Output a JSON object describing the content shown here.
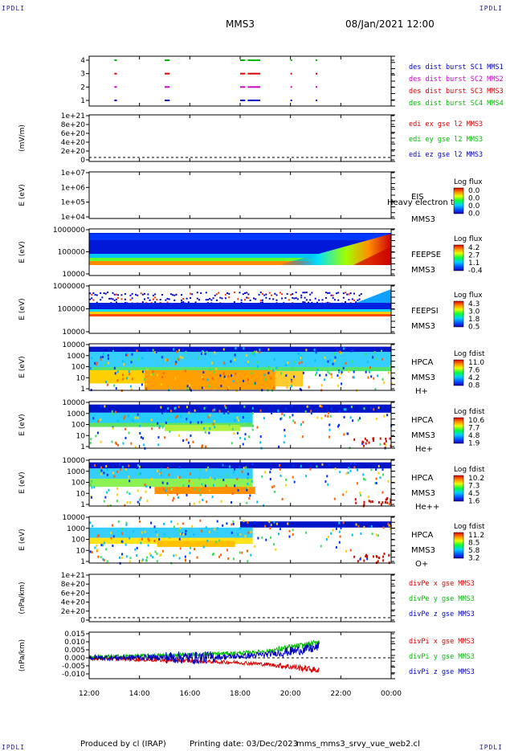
{
  "header": {
    "corner_tl": "IPDLI",
    "corner_tr": "IPDLI",
    "corner_bl": "IPDLI",
    "corner_br": "IPDLI",
    "mission": "MMS3",
    "datetime": "08/Jan/2021 12:00"
  },
  "footer": {
    "producer": "Produced by cl (IRAP)",
    "printing_date": "Printing date: 03/Dec/2023",
    "filename": "mms_mms3_srvy_vue_web2.cl"
  },
  "colors": {
    "blue": "#0000cc",
    "magenta": "#cc00cc",
    "red": "#dd0000",
    "green": "#00bb00"
  },
  "chart_data": [
    {
      "type": "scatter",
      "id": "burst",
      "yticks": [
        "4",
        "3",
        "2",
        "1"
      ],
      "legend": [
        {
          "label": "des dist burst SC1 MMS1",
          "color": "#0000cc"
        },
        {
          "label": "des dist burst SC2 MMS2",
          "color": "#cc00cc"
        },
        {
          "label": "des dist burst SC3 MMS3",
          "color": "#dd0000"
        },
        {
          "label": "des dist burst SC4 MMS4",
          "color": "#00bb00"
        }
      ],
      "intervals": [
        [
          13.0,
          13.1
        ],
        [
          15.0,
          15.2
        ],
        [
          18.0,
          18.2
        ],
        [
          18.3,
          18.8
        ],
        [
          20.0,
          20.05
        ],
        [
          21.0,
          21.05
        ]
      ]
    },
    {
      "type": "line",
      "id": "edi",
      "ylabel": "(mV/m)",
      "yticks": [
        "1e+21",
        "8e+20",
        "6e+20",
        "4e+20",
        "2e+20",
        "0"
      ],
      "legend": [
        {
          "label": "edi ex gse l2 MMS3",
          "color": "#dd0000"
        },
        {
          "label": "edi ey gse l2 MMS3",
          "color": "#00bb00"
        },
        {
          "label": "edi ez gse l2 MMS3",
          "color": "#0000cc"
        }
      ]
    },
    {
      "type": "heatmap",
      "id": "eis",
      "ylabel": "E (eV)",
      "yticks": [
        "1e+07",
        "1e+06",
        "1e+05",
        "1e+04"
      ],
      "side": [
        "EIS",
        "Heavy electron to",
        "MMS3"
      ],
      "cbar_title": "Log flux",
      "cbar_ticks": [
        "0.0",
        "0.0",
        "0.0",
        "0.0"
      ]
    },
    {
      "type": "heatmap",
      "id": "feepse",
      "ylabel": "E (eV)",
      "yticks": [
        "1000000",
        "100000",
        "10000"
      ],
      "side": [
        "FEEPSE",
        "MMS3"
      ],
      "cbar_title": "Log flux",
      "cbar_ticks": [
        "4.2",
        "2.7",
        "1.1",
        "-0.4"
      ]
    },
    {
      "type": "heatmap",
      "id": "feepsi",
      "ylabel": "E (eV)",
      "yticks": [
        "1000000",
        "100000",
        "10000"
      ],
      "side": [
        "FEEPSI",
        "MMS3"
      ],
      "cbar_title": "Log flux",
      "cbar_ticks": [
        "4.3",
        "3.0",
        "1.8",
        "0.5"
      ]
    },
    {
      "type": "heatmap",
      "id": "hpca_h",
      "ylabel": "E (eV)",
      "yticks": [
        "10000",
        "1000",
        "100",
        "10",
        "1"
      ],
      "side": [
        "HPCA",
        "MMS3",
        "H+"
      ],
      "cbar_title": "Log fdist",
      "cbar_ticks": [
        "11.0",
        "7.6",
        "4.2",
        "0.8"
      ]
    },
    {
      "type": "heatmap",
      "id": "hpca_he",
      "ylabel": "E (eV)",
      "yticks": [
        "10000",
        "1000",
        "100",
        "10",
        "1"
      ],
      "side": [
        "HPCA",
        "MMS3",
        "He+"
      ],
      "cbar_title": "Log fdist",
      "cbar_ticks": [
        "10.6",
        "7.7",
        "4.8",
        "1.9"
      ]
    },
    {
      "type": "heatmap",
      "id": "hpca_hepp",
      "ylabel": "E (eV)",
      "yticks": [
        "10000",
        "1000",
        "100",
        "10",
        "1"
      ],
      "side": [
        "HPCA",
        "MMS3",
        "He++"
      ],
      "cbar_title": "Log fdist",
      "cbar_ticks": [
        "10.2",
        "7.3",
        "4.5",
        "1.6"
      ]
    },
    {
      "type": "heatmap",
      "id": "hpca_o",
      "ylabel": "E (eV)",
      "yticks": [
        "10000",
        "1000",
        "100",
        "10",
        "1"
      ],
      "side": [
        "HPCA",
        "MMS3",
        "O+"
      ],
      "cbar_title": "Log fdist",
      "cbar_ticks": [
        "11.2",
        "8.5",
        "5.8",
        "3.2"
      ]
    },
    {
      "type": "line",
      "id": "divpe",
      "ylabel": "(nPa/km)",
      "yticks": [
        "1e+21",
        "8e+20",
        "6e+20",
        "4e+20",
        "2e+20",
        "0"
      ],
      "legend": [
        {
          "label": "divPe x gse MMS3",
          "color": "#dd0000"
        },
        {
          "label": "divPe y gse MMS3",
          "color": "#00bb00"
        },
        {
          "label": "divPe z gse MMS3",
          "color": "#0000cc"
        }
      ]
    },
    {
      "type": "line",
      "id": "divpi",
      "ylabel": "(nPa/km)",
      "yticks": [
        "0.015",
        "0.010",
        "0.005",
        "0.000",
        "-0.005",
        "-0.010"
      ],
      "ylim": [
        -0.013,
        0.016
      ],
      "legend": [
        {
          "label": "divPi x gse MMS3",
          "color": "#dd0000"
        },
        {
          "label": "divPi y gse MMS3",
          "color": "#00bb00"
        },
        {
          "label": "divPi z gse MMS3",
          "color": "#0000cc"
        }
      ],
      "series": [
        {
          "color": "#dd0000",
          "x": [
            12,
            13,
            14,
            15,
            16,
            17,
            18,
            19,
            20,
            21,
            21.15
          ],
          "y": [
            0.0,
            -0.0005,
            -0.001,
            -0.0015,
            -0.002,
            -0.0025,
            -0.003,
            -0.004,
            -0.0055,
            -0.0075,
            -0.008
          ]
        },
        {
          "color": "#00bb00",
          "x": [
            12,
            13,
            14,
            15,
            16,
            17,
            18,
            19,
            20,
            21,
            21.15
          ],
          "y": [
            0.0005,
            0.0008,
            0.0012,
            0.0015,
            0.002,
            0.0025,
            0.003,
            0.004,
            0.0065,
            0.009,
            0.011
          ]
        },
        {
          "color": "#0000cc",
          "x": [
            12,
            13,
            14,
            15,
            16,
            17,
            18,
            19,
            20,
            21,
            21.15
          ],
          "y": [
            0.0,
            0.0,
            0.0002,
            0.0003,
            0.0,
            0.0005,
            0.001,
            0.002,
            0.004,
            0.006,
            0.008
          ]
        }
      ]
    }
  ],
  "xaxis": {
    "ticks": [
      "12:00",
      "14:00",
      "16:00",
      "18:00",
      "20:00",
      "22:00",
      "00:00"
    ],
    "range_hours": [
      12,
      24
    ]
  }
}
